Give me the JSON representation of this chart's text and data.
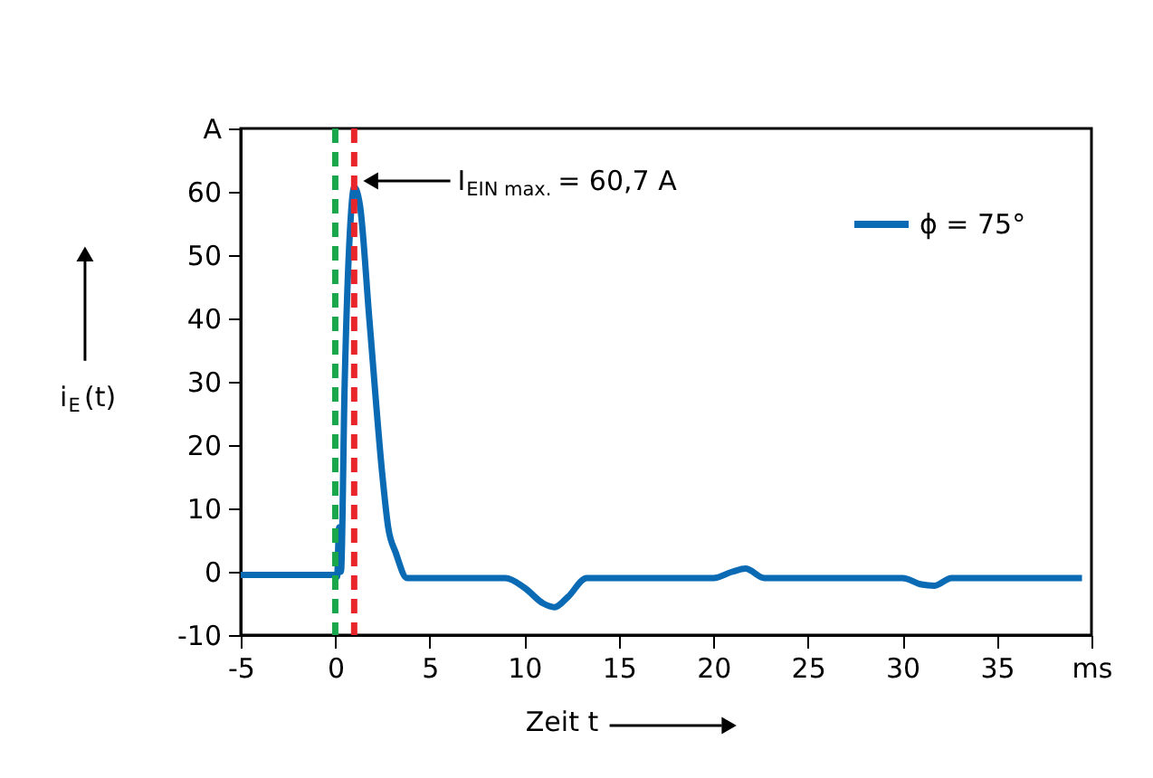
{
  "chart_data": {
    "type": "line",
    "xlabel": "Zeit t",
    "ylabel": "i$_{E}$(t)",
    "x": [
      -5,
      0,
      0.1,
      0.2,
      0.3,
      0.5,
      0.8,
      1.0,
      1.3,
      1.8,
      2.5,
      2.8,
      3.2,
      3.8,
      9,
      10,
      11,
      11.6,
      12.3,
      13.3,
      20,
      21,
      21.7,
      22.7,
      30,
      31,
      31.7,
      32.6,
      39.5
    ],
    "series": [
      {
        "name": "ϕ = 75°",
        "color": "#0a6ab4",
        "values": [
          -0.5,
          -0.5,
          -0.8,
          7,
          0,
          30,
          55,
          60.7,
          58,
          40,
          15,
          7,
          3,
          -1,
          -1,
          -2.5,
          -5,
          -5.6,
          -4,
          -1,
          -1,
          0,
          0.5,
          -1,
          -1,
          -2,
          -2.2,
          -1,
          -1
        ]
      }
    ],
    "xlim": [
      -5,
      40
    ],
    "ylim": [
      -10,
      70
    ],
    "xticks": [
      -5,
      0,
      5,
      10,
      15,
      20,
      25,
      30,
      35,
      {
        "value": 40,
        "label": "ms"
      }
    ],
    "yticks": [
      -10,
      0,
      10,
      20,
      30,
      40,
      50,
      60,
      {
        "value": 70,
        "label": "A"
      }
    ],
    "ref_lines": [
      {
        "axis": "x",
        "value": 0,
        "color": "#1aa64a",
        "line_style": "dashed"
      },
      {
        "axis": "x",
        "value": 1,
        "color": "#e8252a",
        "line_style": "dashed"
      }
    ],
    "annotations": [
      "I$_{EIN max.}$ = 60,7 A"
    ],
    "grid": false,
    "legend": "top right",
    "line_style": "solid",
    "marker": "none"
  }
}
